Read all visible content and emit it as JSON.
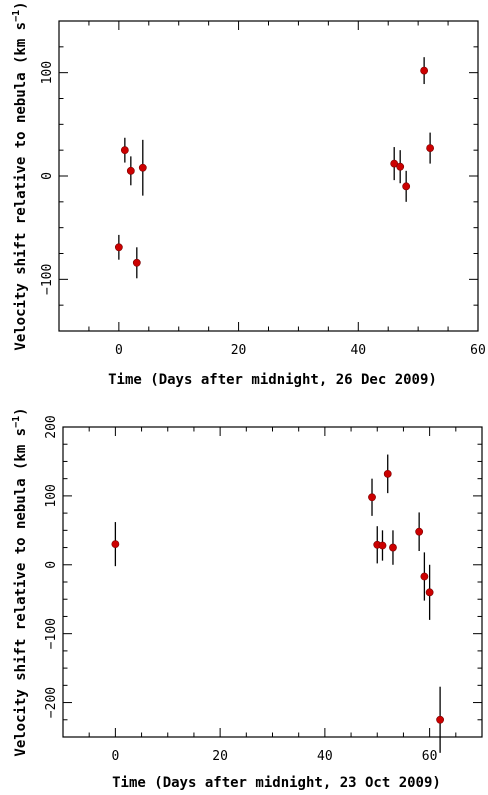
{
  "chart_data": [
    {
      "type": "scatter",
      "error_bars": true,
      "xlabel": "Time (Days after midnight, 26 Dec 2009)",
      "ylabel_main": "Velocity shift relative to nebula (km s",
      "ylabel_sup": "−1",
      "ylabel_close": ")",
      "xlim": [
        -10,
        60
      ],
      "ylim": [
        -150,
        150
      ],
      "xticks": [
        0,
        20,
        40,
        60
      ],
      "yticks": [
        -100,
        0,
        100
      ],
      "ytick_labels": [
        "−100",
        "0",
        "100"
      ],
      "marker_color": "#cc0000",
      "points": [
        {
          "x": 0,
          "y": -69,
          "err": 12
        },
        {
          "x": 1,
          "y": 25,
          "err": 12
        },
        {
          "x": 2,
          "y": 5,
          "err": 14
        },
        {
          "x": 3,
          "y": -84,
          "err": 15
        },
        {
          "x": 4,
          "y": 8,
          "err": 27
        },
        {
          "x": 46,
          "y": 12,
          "err": 16
        },
        {
          "x": 47,
          "y": 9,
          "err": 16
        },
        {
          "x": 48,
          "y": -10,
          "err": 15
        },
        {
          "x": 51,
          "y": 102,
          "err": 13
        },
        {
          "x": 52,
          "y": 27,
          "err": 15
        }
      ]
    },
    {
      "type": "scatter",
      "error_bars": true,
      "xlabel": "Time (Days after midnight, 23 Oct 2009)",
      "ylabel_main": "Velocity shift relative to nebula (km s",
      "ylabel_sup": "−1",
      "ylabel_close": ")",
      "xlim": [
        -10,
        70
      ],
      "ylim": [
        -250,
        200
      ],
      "xticks": [
        0,
        20,
        40,
        60
      ],
      "yticks": [
        -200,
        -100,
        0,
        100,
        200
      ],
      "ytick_labels": [
        "−200",
        "−100",
        "0",
        "100",
        "200"
      ],
      "marker_color": "#cc0000",
      "points": [
        {
          "x": 0,
          "y": 30,
          "err": 32
        },
        {
          "x": 49,
          "y": 98,
          "err": 27
        },
        {
          "x": 50,
          "y": 29,
          "err": 27
        },
        {
          "x": 51,
          "y": 28,
          "err": 22
        },
        {
          "x": 52,
          "y": 132,
          "err": 28
        },
        {
          "x": 53,
          "y": 25,
          "err": 25
        },
        {
          "x": 58,
          "y": 48,
          "err": 28
        },
        {
          "x": 59,
          "y": -17,
          "err": 35
        },
        {
          "x": 60,
          "y": -40,
          "err": 40
        },
        {
          "x": 62,
          "y": -225,
          "err": 48
        }
      ]
    }
  ]
}
